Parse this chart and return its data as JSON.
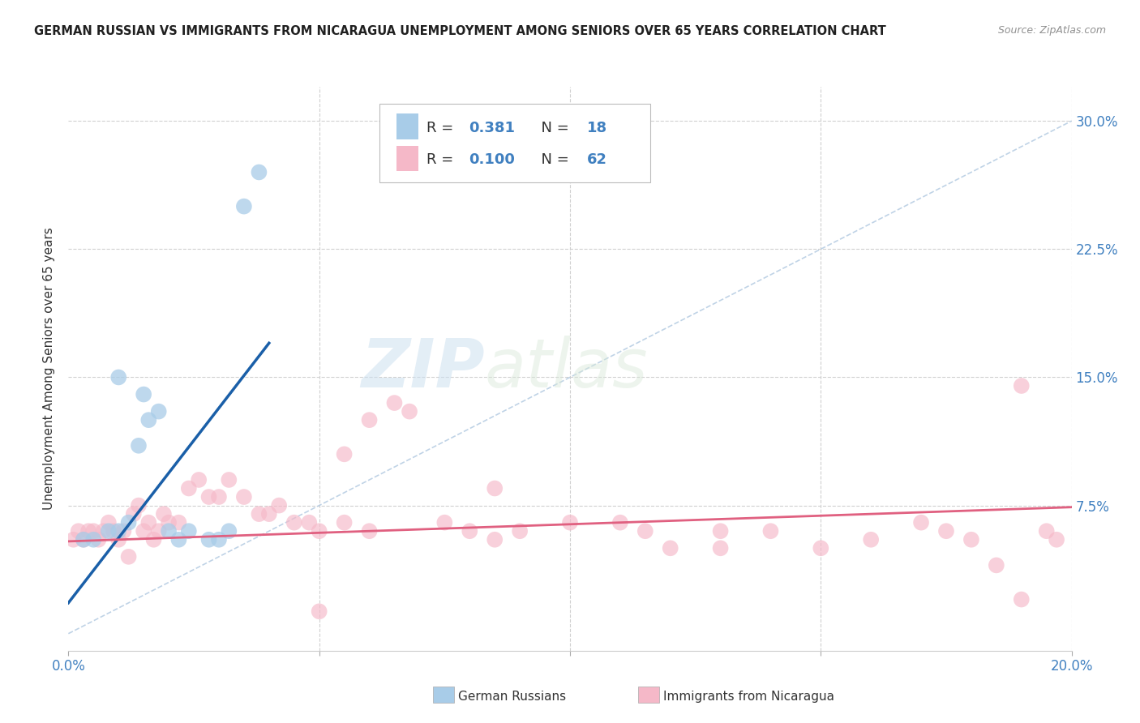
{
  "title": "GERMAN RUSSIAN VS IMMIGRANTS FROM NICARAGUA UNEMPLOYMENT AMONG SENIORS OVER 65 YEARS CORRELATION CHART",
  "source": "Source: ZipAtlas.com",
  "ylabel": "Unemployment Among Seniors over 65 years",
  "xlim": [
    0.0,
    0.2
  ],
  "ylim": [
    -0.01,
    0.32
  ],
  "xticks": [
    0.0,
    0.05,
    0.1,
    0.15,
    0.2
  ],
  "xticklabels": [
    "0.0%",
    "",
    "",
    "",
    "20.0%"
  ],
  "yticks": [
    0.0,
    0.075,
    0.15,
    0.225,
    0.3
  ],
  "yticklabels": [
    "",
    "7.5%",
    "15.0%",
    "22.5%",
    "30.0%"
  ],
  "watermark_zip": "ZIP",
  "watermark_atlas": "atlas",
  "legend_r1": "R = ",
  "legend_v1": "0.381",
  "legend_n1_label": "N = ",
  "legend_n1": "18",
  "legend_r2": "R = ",
  "legend_v2": "0.100",
  "legend_n2_label": "N = ",
  "legend_n2": "62",
  "color_blue": "#a8cce8",
  "color_pink": "#f5b8c8",
  "color_blue_line": "#1a5fa8",
  "color_pink_line": "#e06080",
  "color_diag": "#b0c8e0",
  "background": "#ffffff",
  "grid_color": "#d0d0d0",
  "title_color": "#202020",
  "source_color": "#909090",
  "label_color": "#4080c0",
  "german_russian_x": [
    0.003,
    0.005,
    0.008,
    0.01,
    0.012,
    0.014,
    0.016,
    0.018,
    0.02,
    0.022,
    0.024,
    0.028,
    0.03,
    0.032,
    0.035,
    0.038,
    0.01,
    0.015
  ],
  "german_russian_y": [
    0.055,
    0.055,
    0.06,
    0.06,
    0.065,
    0.11,
    0.125,
    0.13,
    0.06,
    0.055,
    0.06,
    0.055,
    0.055,
    0.06,
    0.25,
    0.27,
    0.15,
    0.14
  ],
  "nicaragua_x": [
    0.001,
    0.002,
    0.003,
    0.004,
    0.005,
    0.006,
    0.007,
    0.008,
    0.009,
    0.01,
    0.011,
    0.012,
    0.013,
    0.014,
    0.015,
    0.016,
    0.017,
    0.018,
    0.019,
    0.02,
    0.022,
    0.024,
    0.026,
    0.028,
    0.03,
    0.032,
    0.035,
    0.038,
    0.04,
    0.042,
    0.045,
    0.048,
    0.05,
    0.055,
    0.06,
    0.065,
    0.068,
    0.075,
    0.08,
    0.085,
    0.09,
    0.1,
    0.11,
    0.12,
    0.13,
    0.14,
    0.15,
    0.16,
    0.17,
    0.18,
    0.185,
    0.19,
    0.195,
    0.197,
    0.055,
    0.13,
    0.06,
    0.085,
    0.19,
    0.175,
    0.05,
    0.115
  ],
  "nicaragua_y": [
    0.055,
    0.06,
    0.055,
    0.06,
    0.06,
    0.055,
    0.06,
    0.065,
    0.06,
    0.055,
    0.06,
    0.045,
    0.07,
    0.075,
    0.06,
    0.065,
    0.055,
    0.06,
    0.07,
    0.065,
    0.065,
    0.085,
    0.09,
    0.08,
    0.08,
    0.09,
    0.08,
    0.07,
    0.07,
    0.075,
    0.065,
    0.065,
    0.06,
    0.065,
    0.06,
    0.135,
    0.13,
    0.065,
    0.06,
    0.055,
    0.06,
    0.065,
    0.065,
    0.05,
    0.05,
    0.06,
    0.05,
    0.055,
    0.065,
    0.055,
    0.04,
    0.02,
    0.06,
    0.055,
    0.105,
    0.06,
    0.125,
    0.085,
    0.145,
    0.06,
    0.013,
    0.06
  ]
}
